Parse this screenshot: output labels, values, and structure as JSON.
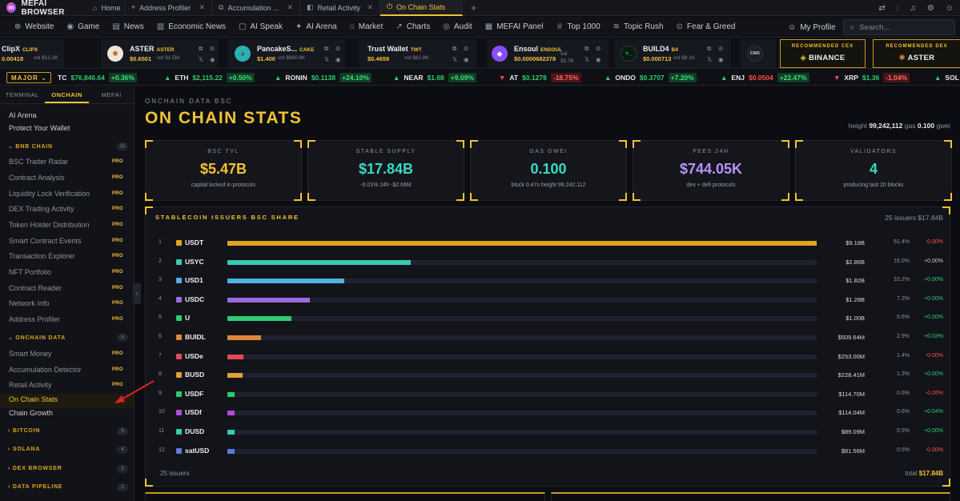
{
  "browser": {
    "name": "MEFAI BROWSER",
    "tabs": [
      {
        "label": "Home",
        "icon": "⌂"
      },
      {
        "label": "Address Profiler",
        "icon": "⌖"
      },
      {
        "label": "Accumulation ...",
        "icon": "⧉"
      },
      {
        "label": "Retail Activity",
        "icon": "◧"
      },
      {
        "label": "On Chain Stats",
        "icon": "⏻"
      }
    ],
    "new_tab": "+"
  },
  "nav": {
    "items": [
      {
        "label": "Website",
        "icon": "⊕"
      },
      {
        "label": "Game",
        "icon": "◉"
      },
      {
        "label": "News",
        "icon": "▤"
      },
      {
        "label": "Economic News",
        "icon": "▥"
      },
      {
        "label": "AI Speak",
        "icon": "▢"
      },
      {
        "label": "AI Arena",
        "icon": "✦"
      },
      {
        "label": "Market",
        "icon": "⌂"
      },
      {
        "label": "Charts",
        "icon": "↗"
      },
      {
        "label": "Audit",
        "icon": "◎"
      },
      {
        "label": "MEFAI Panel",
        "icon": "▦"
      },
      {
        "label": "Top 1000",
        "icon": "♕"
      },
      {
        "label": "Topic Rush",
        "icon": "≋"
      },
      {
        "label": "Fear & Greed",
        "icon": "⊙"
      }
    ],
    "profile": "My Profile",
    "search_placeholder": "Search..."
  },
  "cards": [
    {
      "name": "ClipX",
      "ticker": "CLIPX",
      "price": "0.00418",
      "vol": "vol $12.3K",
      "color": "#2b2f38",
      "glyph": ""
    },
    {
      "name": "ASTER",
      "ticker": "ASTER",
      "price": "$0.6501",
      "vol": "vol $1.5M",
      "color": "#e8e2d6",
      "glyph": "✺"
    },
    {
      "name": "PancakeS...",
      "ticker": "CAKE",
      "price": "$1.400",
      "vol": "vol $880.8K",
      "color": "#2bb0b4",
      "glyph": "🐰"
    },
    {
      "name": "Trust Wallet",
      "ticker": "TWT",
      "price": "$0.4659",
      "vol": "vol $82.8K",
      "color": "#15181f",
      "glyph": ""
    },
    {
      "name": "Ensoul",
      "ticker": "ENSOUL",
      "price": "$0.0000682378",
      "vol": "vol $5.7K",
      "color": "#8a4dff",
      "glyph": "◆"
    },
    {
      "name": "BUILD4",
      "ticker": "B4",
      "price": "$0.000713",
      "vol": "vol $8.1K",
      "color": "#0a1a10",
      "glyph": ">_"
    },
    {
      "name": "",
      "ticker": "",
      "price": "",
      "vol": "",
      "color": "#1c1f26",
      "glyph": "CMX"
    }
  ],
  "recommended": [
    {
      "label": "RECOMMENDED CEX",
      "value": "BINANCE"
    },
    {
      "label": "RECOMMENDED DEX",
      "value": "ASTER"
    }
  ],
  "market": {
    "selector": "MAJOR",
    "prices": [
      {
        "sym": "TC",
        "price": "$76,846.64",
        "chg": "+0.36%",
        "dir": "up"
      },
      {
        "sym": "ETH",
        "price": "$2,115.22",
        "chg": "+0.50%",
        "dir": "up"
      },
      {
        "sym": "RONIN",
        "price": "$0.1138",
        "chg": "+24.10%",
        "dir": "up"
      },
      {
        "sym": "NEAR",
        "price": "$1.68",
        "chg": "+9.09%",
        "dir": "up"
      },
      {
        "sym": "AT",
        "price": "$0.1278",
        "chg": "-18.75%",
        "dir": "dn"
      },
      {
        "sym": "ONDO",
        "price": "$0.3707",
        "chg": "+7.20%",
        "dir": "up"
      },
      {
        "sym": "ENJ",
        "price": "$0.0504",
        "chg": "+22.47%",
        "dir": "up"
      },
      {
        "sym": "XRP",
        "price": "$1.36",
        "chg": "-1.04%",
        "dir": "dn"
      },
      {
        "sym": "SOL",
        "price": "",
        "chg": "",
        "dir": "up"
      }
    ]
  },
  "sidebar": {
    "tabs": [
      "TERMINAL",
      "ONCHAIN",
      "MEFAI"
    ],
    "top": [
      "AI Arena",
      "Protect Your Wallet"
    ],
    "bnb": {
      "title": "BNB CHAIN",
      "count": "11",
      "items": [
        "BSC Trader Radar",
        "Contract Analysis",
        "Liquidity Lock Verification",
        "DEX Trading Activity",
        "Token Holder Distribution",
        "Smart Contract Events",
        "Transaction Explorer",
        "NFT Portfolio",
        "Contract Reader",
        "Network Info",
        "Address Profiler"
      ]
    },
    "onchain": {
      "title": "ONCHAIN DATA",
      "count": "5",
      "items": [
        "Smart Money",
        "Accumulation Detector",
        "Retail Activity",
        "On Chain Stats",
        "Chain Growth"
      ]
    },
    "sections": [
      {
        "title": "BITCOIN",
        "count": "5"
      },
      {
        "title": "SOLANA",
        "count": "4"
      },
      {
        "title": "DEX BROWSER",
        "count": "2"
      },
      {
        "title": "DATA PIPELINE",
        "count": "2"
      }
    ],
    "pro": "PRO"
  },
  "page": {
    "kicker": "ONCHAIN DATA BSC",
    "title": "ON CHAIN STATS",
    "height_label": "height",
    "height": "99,242,112",
    "gas_label": "gas",
    "gas": "0.100",
    "gwei": "gwei",
    "stats": [
      {
        "label": "BSC TVL",
        "value": "$5.47B",
        "desc": "capital locked in protocols",
        "color": "#f3c233"
      },
      {
        "label": "STABLE SUPPLY",
        "value": "$17.84B",
        "desc": "-0.01% 24h -$2.66M",
        "color": "#38d9c4"
      },
      {
        "label": "GAS GWEI",
        "value": "0.100",
        "desc": "block 0.47s height 99,242,112",
        "color": "#38d9c4"
      },
      {
        "label": "FEES 24H",
        "value": "$744.05K",
        "desc": "dex + defi protocols",
        "color": "#b693ff"
      },
      {
        "label": "VALIDATORS",
        "value": "4",
        "desc": "producing last 20 blocks",
        "color": "#38d9c4"
      }
    ],
    "panel": {
      "title": "STABLECOIN ISSUERS BSC SHARE",
      "summary": "25 issuers $17.84B",
      "footer": "25 issuers",
      "total_label": "total",
      "total": "$17.84B",
      "rows": [
        {
          "n": "1",
          "sym": "USDT",
          "value": "$9.18B",
          "pct": "51.4%",
          "share": 51.4,
          "chg": "-0.00%",
          "dir": "dn",
          "color": "#e0a520"
        },
        {
          "n": "2",
          "sym": "USYC",
          "value": "$2.86B",
          "pct": "16.0%",
          "share": 16.0,
          "chg": "+0.00%",
          "dir": "fl",
          "color": "#38c9b8"
        },
        {
          "n": "3",
          "sym": "USD1",
          "value": "$1.82B",
          "pct": "10.2%",
          "share": 10.2,
          "chg": "+0.00%",
          "dir": "up",
          "color": "#4fb3e0"
        },
        {
          "n": "4",
          "sym": "USDC",
          "value": "$1.28B",
          "pct": "7.2%",
          "share": 7.2,
          "chg": "+0.00%",
          "dir": "up",
          "color": "#9b6be0"
        },
        {
          "n": "5",
          "sym": "U",
          "value": "$1.00B",
          "pct": "5.6%",
          "share": 5.6,
          "chg": "+0.00%",
          "dir": "up",
          "color": "#2ecc71"
        },
        {
          "n": "6",
          "sym": "BUIDL",
          "value": "$509.64M",
          "pct": "2.9%",
          "share": 2.9,
          "chg": "+0.03%",
          "dir": "up",
          "color": "#e0883a"
        },
        {
          "n": "7",
          "sym": "USDe",
          "value": "$253.00M",
          "pct": "1.4%",
          "share": 1.4,
          "chg": "-0.00%",
          "dir": "dn",
          "color": "#e04a5a"
        },
        {
          "n": "8",
          "sym": "BUSD",
          "value": "$228.41M",
          "pct": "1.3%",
          "share": 1.3,
          "chg": "+0.00%",
          "dir": "up",
          "color": "#e0a040"
        },
        {
          "n": "9",
          "sym": "USDF",
          "value": "$114.70M",
          "pct": "0.6%",
          "share": 0.6,
          "chg": "-0.26%",
          "dir": "dn",
          "color": "#2ecc71"
        },
        {
          "n": "10",
          "sym": "USDf",
          "value": "$114.04M",
          "pct": "0.6%",
          "share": 0.6,
          "chg": "+0.04%",
          "dir": "up",
          "color": "#b04ae0"
        },
        {
          "n": "11",
          "sym": "DUSD",
          "value": "$89.09M",
          "pct": "0.5%",
          "share": 0.5,
          "chg": "+0.00%",
          "dir": "up",
          "color": "#38c9b8"
        },
        {
          "n": "12",
          "sym": "satUSD",
          "value": "$81.56M",
          "pct": "0.5%",
          "share": 0.5,
          "chg": "-0.00%",
          "dir": "dn",
          "color": "#5b7be0"
        }
      ]
    }
  }
}
